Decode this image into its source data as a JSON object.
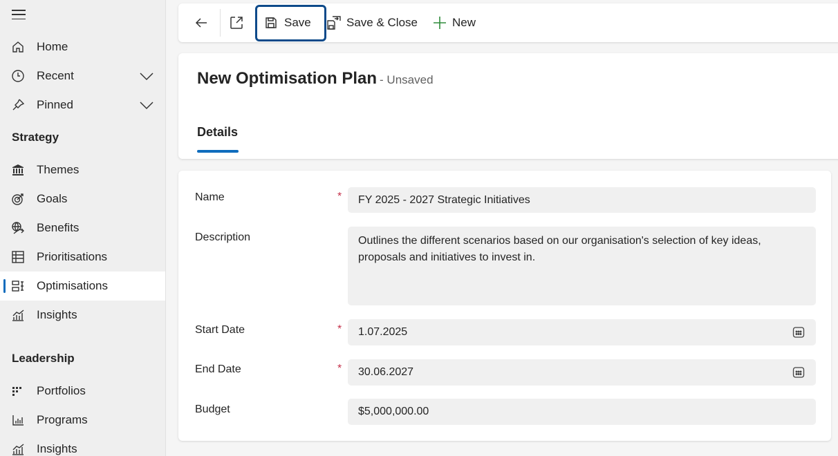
{
  "sidebar": {
    "menu_icon": "hamburger-icon",
    "items": [
      {
        "label": "Home",
        "icon": "home-icon"
      },
      {
        "label": "Recent",
        "icon": "clock-icon"
      },
      {
        "label": "Pinned",
        "icon": "pin-icon"
      }
    ],
    "sections": [
      {
        "title": "Strategy",
        "items": [
          {
            "label": "Themes",
            "icon": "bank-icon"
          },
          {
            "label": "Goals",
            "icon": "target-icon"
          },
          {
            "label": "Benefits",
            "icon": "globe-arrow-icon"
          },
          {
            "label": "Prioritisations",
            "icon": "table-icon"
          },
          {
            "label": "Optimisations",
            "icon": "optimise-icon",
            "active": true
          },
          {
            "label": "Insights",
            "icon": "chart-icon"
          }
        ]
      },
      {
        "title": "Leadership",
        "items": [
          {
            "label": "Portfolios",
            "icon": "portfolio-grid-icon"
          },
          {
            "label": "Programs",
            "icon": "bar-chart-icon"
          },
          {
            "label": "Insights",
            "icon": "chart-icon"
          }
        ]
      }
    ]
  },
  "toolbar": {
    "save_label": "Save",
    "save_close_label": "Save & Close",
    "new_label": "New",
    "accent_color": "#0e4a8a"
  },
  "record": {
    "title": "New Optimisation Plan",
    "status": "- Unsaved",
    "tabs": [
      {
        "label": "Details",
        "selected": true
      }
    ]
  },
  "form": {
    "name": {
      "label": "Name",
      "value": "FY 2025 - 2027 Strategic Initiatives",
      "required": "*"
    },
    "description": {
      "label": "Description",
      "value": "Outlines the different scenarios based on our organisation's selection of key ideas, proposals and initiatives to invest in."
    },
    "start_date": {
      "label": "Start Date",
      "value": "1.07.2025",
      "required": "*"
    },
    "end_date": {
      "label": "End Date",
      "value": "30.06.2027",
      "required": "*"
    },
    "budget": {
      "label": "Budget",
      "value": "$5,000,000.00"
    }
  }
}
